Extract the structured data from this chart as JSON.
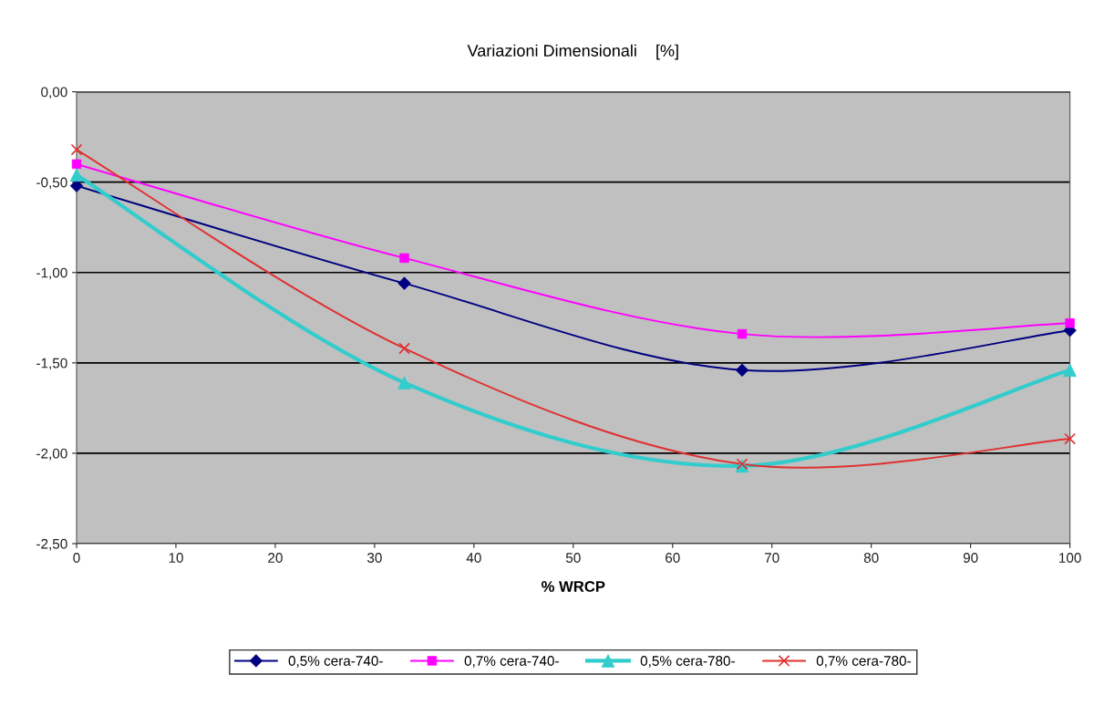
{
  "chart_data": {
    "type": "line",
    "title": "Variazioni Dimensionali    [%]",
    "xlabel": "% WRCP",
    "x": [
      0,
      33,
      67,
      100
    ],
    "series": [
      {
        "name": "0,5% cera-740-",
        "color": "#000080",
        "marker": "diamond",
        "values": [
          -0.52,
          -1.06,
          -1.54,
          -1.32
        ]
      },
      {
        "name": "0,7% cera-740-",
        "color": "#ff00ff",
        "marker": "square",
        "values": [
          -0.4,
          -0.92,
          -1.34,
          -1.28
        ]
      },
      {
        "name": "0,5% cera-780-",
        "color": "#33cccc",
        "marker": "triangle",
        "values": [
          -0.46,
          -1.61,
          -2.07,
          -1.54
        ]
      },
      {
        "name": "0,7% cera-780-",
        "color": "#e03030",
        "marker": "cross",
        "values": [
          -0.32,
          -1.42,
          -2.06,
          -1.92
        ]
      }
    ],
    "xlim": [
      0,
      100
    ],
    "xticks": [
      0,
      10,
      20,
      30,
      40,
      50,
      60,
      70,
      80,
      90,
      100
    ],
    "ylim": [
      -2.5,
      0
    ],
    "yticks": [
      {
        "value": -2.5,
        "label": "-2,50"
      },
      {
        "value": -2.0,
        "label": "-2,00"
      },
      {
        "value": -1.5,
        "label": "-1,50"
      },
      {
        "value": -1.0,
        "label": "-1,00"
      },
      {
        "value": -0.5,
        "label": "-0,50"
      },
      {
        "value": 0,
        "label": "0,00"
      }
    ],
    "grid": "y",
    "legend": "bottom",
    "line_style": "solid"
  }
}
